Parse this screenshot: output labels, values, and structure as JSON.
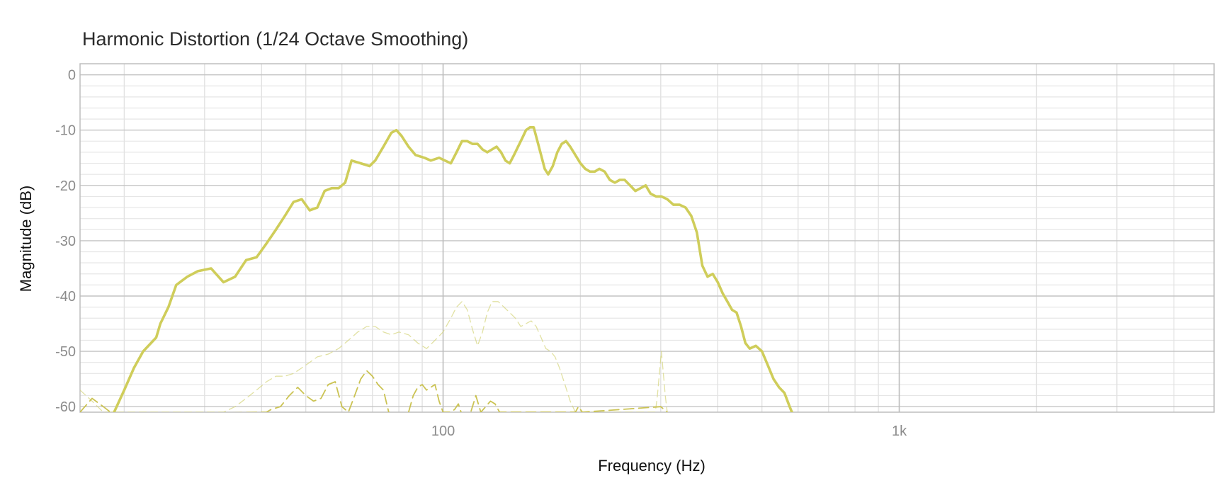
{
  "chart_data": {
    "type": "line",
    "title": "Harmonic Distortion",
    "subtitle": "(1/24 Octave Smoothing)",
    "xlabel": "Frequency (Hz)",
    "ylabel": "Magnitude (dB)",
    "x_scale": "log",
    "xlim": [
      16,
      4900
    ],
    "ylim": [
      -61,
      2
    ],
    "x_ticks": [
      {
        "value": 100,
        "label": "100"
      },
      {
        "value": 1000,
        "label": "1k"
      }
    ],
    "y_ticks": [
      {
        "value": 0,
        "label": "0"
      },
      {
        "value": -10,
        "label": "-10"
      },
      {
        "value": -20,
        "label": "-20"
      },
      {
        "value": -30,
        "label": "-30"
      },
      {
        "value": -40,
        "label": "-40"
      },
      {
        "value": -50,
        "label": "-50"
      },
      {
        "value": -60,
        "label": "-60"
      }
    ],
    "grid": true,
    "legend": "none",
    "series": [
      {
        "style": "solid-thick",
        "color": "#cfcd5a",
        "points": [
          [
            19,
            -61
          ],
          [
            20,
            -57
          ],
          [
            21,
            -53
          ],
          [
            22,
            -50
          ],
          [
            23.5,
            -47.5
          ],
          [
            24,
            -45
          ],
          [
            25,
            -42
          ],
          [
            26,
            -38
          ],
          [
            27.5,
            -36.5
          ],
          [
            29,
            -35.5
          ],
          [
            31,
            -35
          ],
          [
            33,
            -37.5
          ],
          [
            35,
            -36.5
          ],
          [
            37,
            -33.5
          ],
          [
            39,
            -33
          ],
          [
            41,
            -30.5
          ],
          [
            43,
            -28
          ],
          [
            45,
            -25.5
          ],
          [
            47,
            -23
          ],
          [
            49,
            -22.5
          ],
          [
            51,
            -24.5
          ],
          [
            53,
            -24
          ],
          [
            55,
            -21
          ],
          [
            57,
            -20.5
          ],
          [
            59,
            -20.5
          ],
          [
            61,
            -19.5
          ],
          [
            63,
            -15.5
          ],
          [
            66,
            -16
          ],
          [
            69,
            -16.5
          ],
          [
            71,
            -15.5
          ],
          [
            74,
            -13
          ],
          [
            77,
            -10.5
          ],
          [
            79,
            -10
          ],
          [
            81,
            -11
          ],
          [
            84,
            -13
          ],
          [
            87,
            -14.5
          ],
          [
            91,
            -15
          ],
          [
            94,
            -15.5
          ],
          [
            98,
            -15
          ],
          [
            101,
            -15.5
          ],
          [
            104,
            -16
          ],
          [
            107,
            -14
          ],
          [
            110,
            -12
          ],
          [
            113,
            -12
          ],
          [
            116,
            -12.5
          ],
          [
            119,
            -12.5
          ],
          [
            122,
            -13.5
          ],
          [
            125,
            -14
          ],
          [
            128,
            -13.5
          ],
          [
            131,
            -13
          ],
          [
            134,
            -14
          ],
          [
            137,
            -15.5
          ],
          [
            140,
            -16
          ],
          [
            143,
            -14.5
          ],
          [
            146,
            -13
          ],
          [
            149,
            -11.5
          ],
          [
            152,
            -10
          ],
          [
            155,
            -9.5
          ],
          [
            158,
            -9.5
          ],
          [
            161,
            -12
          ],
          [
            164,
            -14.5
          ],
          [
            167,
            -17
          ],
          [
            170,
            -18
          ],
          [
            174,
            -16.5
          ],
          [
            178,
            -14
          ],
          [
            182,
            -12.5
          ],
          [
            186,
            -12
          ],
          [
            190,
            -13
          ],
          [
            195,
            -14.5
          ],
          [
            200,
            -16
          ],
          [
            205,
            -17
          ],
          [
            210,
            -17.5
          ],
          [
            215,
            -17.5
          ],
          [
            220,
            -17
          ],
          [
            226,
            -17.5
          ],
          [
            232,
            -19
          ],
          [
            238,
            -19.5
          ],
          [
            244,
            -19
          ],
          [
            250,
            -19
          ],
          [
            257,
            -20
          ],
          [
            264,
            -21
          ],
          [
            271,
            -20.5
          ],
          [
            278,
            -20
          ],
          [
            285,
            -21.5
          ],
          [
            293,
            -22
          ],
          [
            301,
            -22
          ],
          [
            310,
            -22.5
          ],
          [
            320,
            -23.5
          ],
          [
            330,
            -23.5
          ],
          [
            340,
            -24
          ],
          [
            350,
            -25.5
          ],
          [
            360,
            -28.5
          ],
          [
            370,
            -34.5
          ],
          [
            380,
            -36.5
          ],
          [
            390,
            -36
          ],
          [
            400,
            -37.5
          ],
          [
            410,
            -39.5
          ],
          [
            420,
            -41
          ],
          [
            430,
            -42.5
          ],
          [
            440,
            -43
          ],
          [
            450,
            -45.5
          ],
          [
            460,
            -48.5
          ],
          [
            470,
            -49.5
          ],
          [
            485,
            -49
          ],
          [
            500,
            -50
          ],
          [
            515,
            -52.5
          ],
          [
            530,
            -55
          ],
          [
            545,
            -56.5
          ],
          [
            560,
            -57.5
          ],
          [
            575,
            -60
          ],
          [
            585,
            -61.5
          ]
        ]
      },
      {
        "style": "dashed",
        "color": "#c8c04a",
        "points": [
          [
            16,
            -61
          ],
          [
            17,
            -58.5
          ],
          [
            18,
            -60
          ],
          [
            19,
            -61.5
          ],
          [
            41,
            -61
          ],
          [
            42,
            -60.5
          ],
          [
            44,
            -60
          ],
          [
            46,
            -58
          ],
          [
            48,
            -56.5
          ],
          [
            50,
            -58
          ],
          [
            52,
            -59
          ],
          [
            54,
            -58.5
          ],
          [
            56,
            -56
          ],
          [
            58,
            -55.5
          ],
          [
            60,
            -60
          ],
          [
            62,
            -61
          ],
          [
            64,
            -58
          ],
          [
            66,
            -55
          ],
          [
            68,
            -53.5
          ],
          [
            70,
            -54.5
          ],
          [
            72,
            -56
          ],
          [
            74,
            -57
          ],
          [
            76,
            -61
          ]
        ]
      },
      {
        "style": "dashed",
        "color": "#c8c04a",
        "points": [
          [
            84,
            -61
          ],
          [
            86,
            -58
          ],
          [
            88,
            -56.5
          ],
          [
            90,
            -56
          ],
          [
            92,
            -57
          ],
          [
            94,
            -56.5
          ],
          [
            96,
            -56
          ],
          [
            98,
            -59
          ],
          [
            100,
            -61
          ],
          [
            104,
            -61
          ],
          [
            106,
            -60.5
          ],
          [
            108,
            -59.5
          ],
          [
            110,
            -61.5
          ],
          [
            115,
            -61
          ],
          [
            118,
            -58
          ],
          [
            121,
            -61
          ],
          [
            124,
            -60
          ],
          [
            127,
            -59
          ],
          [
            130,
            -59.5
          ],
          [
            133,
            -61
          ],
          [
            195,
            -61
          ],
          [
            198,
            -60
          ],
          [
            202,
            -61
          ],
          [
            300,
            -60
          ],
          [
            305,
            -60.5
          ],
          [
            310,
            -61
          ]
        ]
      },
      {
        "style": "dashed-light",
        "color": "#d4d47a",
        "points": [
          [
            16,
            -57
          ],
          [
            17,
            -59
          ],
          [
            18,
            -61
          ],
          [
            33,
            -61
          ],
          [
            35,
            -60
          ],
          [
            37,
            -58.5
          ],
          [
            39,
            -57
          ],
          [
            41,
            -55.5
          ],
          [
            43,
            -54.5
          ],
          [
            45,
            -54.5
          ],
          [
            47,
            -54
          ],
          [
            49,
            -53
          ],
          [
            51,
            -52
          ],
          [
            53,
            -51
          ],
          [
            56,
            -50.5
          ],
          [
            59,
            -49.5
          ],
          [
            62,
            -48
          ],
          [
            65,
            -46.5
          ],
          [
            68,
            -45.5
          ],
          [
            71,
            -45.5
          ],
          [
            74,
            -46.5
          ],
          [
            77,
            -47
          ],
          [
            80,
            -46.5
          ],
          [
            84,
            -47
          ],
          [
            88,
            -48.5
          ],
          [
            92,
            -49.5
          ],
          [
            96,
            -48
          ],
          [
            100,
            -46.5
          ],
          [
            104,
            -44
          ],
          [
            107,
            -42
          ],
          [
            110,
            -41
          ],
          [
            113,
            -42.5
          ],
          [
            116,
            -46
          ],
          [
            119,
            -49
          ],
          [
            122,
            -46.5
          ],
          [
            125,
            -43
          ],
          [
            128,
            -41
          ],
          [
            132,
            -41
          ],
          [
            136,
            -42
          ],
          [
            140,
            -43
          ],
          [
            144,
            -44
          ],
          [
            148,
            -45.5
          ],
          [
            152,
            -45
          ],
          [
            156,
            -44.5
          ],
          [
            160,
            -45.5
          ],
          [
            164,
            -47.5
          ],
          [
            168,
            -49.5
          ],
          [
            172,
            -50
          ],
          [
            176,
            -51
          ],
          [
            180,
            -53
          ],
          [
            185,
            -56
          ],
          [
            190,
            -59
          ],
          [
            195,
            -61
          ],
          [
            292,
            -61
          ],
          [
            295,
            -58
          ],
          [
            298,
            -54
          ],
          [
            301,
            -50
          ],
          [
            304,
            -54
          ],
          [
            307,
            -58
          ],
          [
            310,
            -61
          ]
        ]
      }
    ]
  }
}
